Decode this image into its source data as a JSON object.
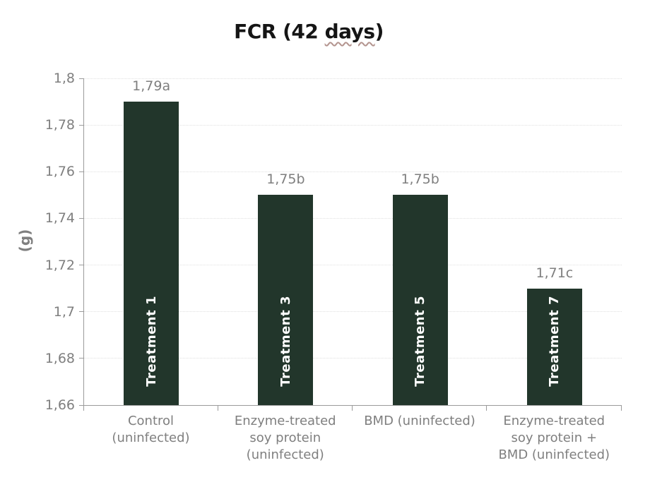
{
  "title": {
    "full": "FCR (42 days)",
    "prefix": "FCR (42 ",
    "misspelled_word": "days",
    "suffix": ")"
  },
  "colors": {
    "bar": "#22362b",
    "bar_text": "#ffffff",
    "gray": "#7f7f7f",
    "axis": "#9b9b9b",
    "grid": "#e0e0e0",
    "title": "#151515",
    "squiggle": "#b3948e"
  },
  "chart_data": {
    "type": "bar",
    "title": "FCR (42 days)",
    "xlabel": "",
    "ylabel": "(g)",
    "ylim": [
      1.66,
      1.8
    ],
    "y_tick_step": 0.02,
    "grid": "horizontal-dotted",
    "legend_position": "none",
    "decimal_separator": ",",
    "y_ticks": [
      {
        "label": "1,8",
        "value": 1.8
      },
      {
        "label": "1,78",
        "value": 1.78
      },
      {
        "label": "1,76",
        "value": 1.76
      },
      {
        "label": "1,74",
        "value": 1.74
      },
      {
        "label": "1,72",
        "value": 1.72
      },
      {
        "label": "1,7",
        "value": 1.7
      },
      {
        "label": "1,68",
        "value": 1.68
      },
      {
        "label": "1,66",
        "value": 1.66
      }
    ],
    "categories": [
      "Control (uninfected)",
      "Enzyme-treated soy protein (uninfected)",
      "BMD (uninfected)",
      "Enzyme-treated soy protein + BMD (uninfected)"
    ],
    "category_lines": [
      [
        "Control",
        "(uninfected)"
      ],
      [
        "Enzyme-treated",
        "soy protein",
        "(uninfected)"
      ],
      [
        "BMD (uninfected)"
      ],
      [
        "Enzyme-treated",
        "soy protein +",
        "BMD (uninfected)"
      ]
    ],
    "values": [
      1.79,
      1.75,
      1.75,
      1.71
    ],
    "value_labels": [
      "1,79a",
      "1,75b",
      "1,75b",
      "1,71c"
    ],
    "bar_inner_labels": [
      "Treatment 1",
      "Treatment 3",
      "Treatment 5",
      "Treatment 7"
    ]
  }
}
